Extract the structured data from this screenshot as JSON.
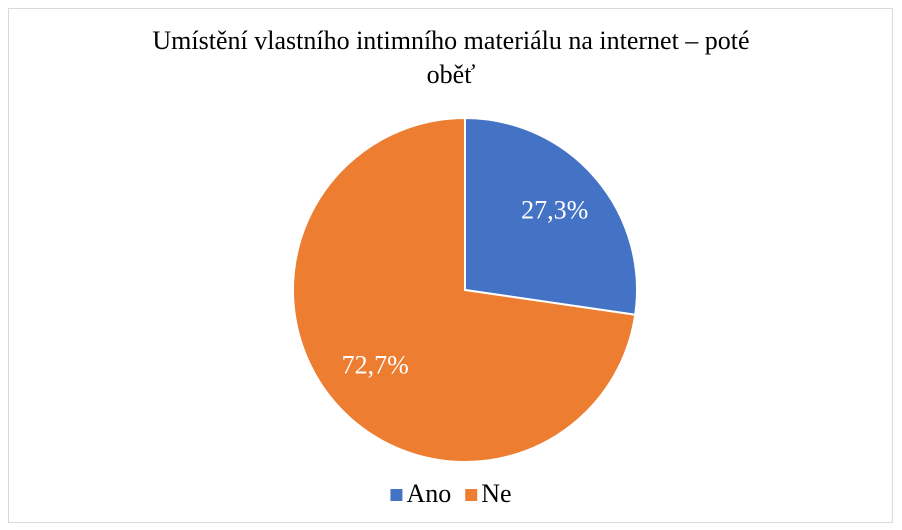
{
  "chart_data": {
    "type": "pie",
    "title": "Umístění vlastního intimního materiálu na internet – poté oběť",
    "categories": [
      "Ano",
      "Ne"
    ],
    "values": [
      27.3,
      72.7
    ],
    "value_labels": [
      "27,3%",
      "72,7%"
    ],
    "colors": [
      "#4472c4",
      "#ed7d31"
    ],
    "legend": "bottom"
  }
}
